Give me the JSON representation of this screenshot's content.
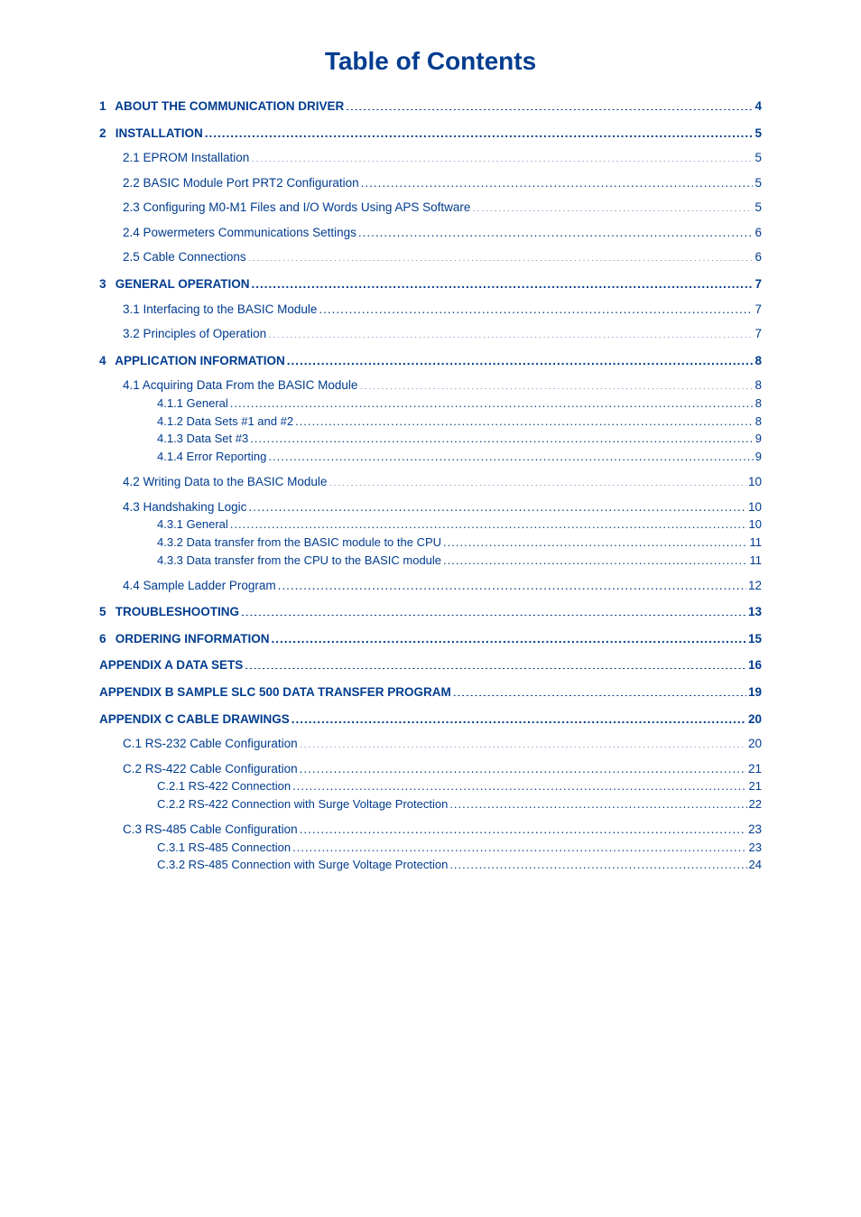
{
  "doc": {
    "title": "Table of Contents",
    "colors": {
      "text": "#003c8f",
      "background": "#ffffff"
    },
    "font_sizes": {
      "title_pt": 21,
      "body_pt": 10.5
    }
  },
  "toc": [
    {
      "level": 1,
      "num": "1",
      "text": "ABOUT THE COMMUNICATION DRIVER",
      "page": "4"
    },
    {
      "level": 1,
      "num": "2",
      "text": "INSTALLATION",
      "page": "5"
    },
    {
      "level": 2,
      "num": "2.1",
      "text": "EPROM Installation",
      "page": "5"
    },
    {
      "level": 2,
      "num": "2.2",
      "text": "BASIC Module Port PRT2 Configuration",
      "page": "5"
    },
    {
      "level": 2,
      "num": "2.3",
      "text": "Configuring M0-M1 Files and I/O Words Using APS Software",
      "page": "5"
    },
    {
      "level": 2,
      "num": "2.4",
      "text": "Powermeters Communications Settings",
      "page": "6"
    },
    {
      "level": 2,
      "num": "2.5",
      "text": "Cable Connections",
      "page": "6"
    },
    {
      "level": 1,
      "num": "3",
      "text": "GENERAL OPERATION",
      "page": "7"
    },
    {
      "level": 2,
      "num": "3.1",
      "text": "Interfacing to the BASIC Module",
      "page": "7"
    },
    {
      "level": 2,
      "num": "3.2",
      "text": "Principles of Operation",
      "page": "7"
    },
    {
      "level": 1,
      "num": "4",
      "text": "APPLICATION INFORMATION",
      "page": "8"
    },
    {
      "level": 2,
      "num": "4.1",
      "text": "Acquiring Data From the BASIC Module",
      "page": "8"
    },
    {
      "level": 3,
      "num": "4.1.1",
      "text": "General",
      "page": "8"
    },
    {
      "level": 3,
      "num": "4.1.2",
      "text": "Data Sets #1 and #2",
      "page": "8"
    },
    {
      "level": 3,
      "num": "4.1.3",
      "text": "Data Set #3",
      "page": "9"
    },
    {
      "level": 3,
      "num": "4.1.4",
      "text": "Error Reporting",
      "page": "9"
    },
    {
      "level": 2,
      "num": "4.2",
      "text": "Writing Data to the BASIC Module",
      "page": "10",
      "gap_before": true
    },
    {
      "level": 2,
      "num": "4.3",
      "text": "Handshaking Logic",
      "page": "10"
    },
    {
      "level": 3,
      "num": "4.3.1",
      "text": "General",
      "page": "10"
    },
    {
      "level": 3,
      "num": "4.3.2",
      "text": "Data transfer from the BASIC module to the CPU",
      "page": "11"
    },
    {
      "level": 3,
      "num": "4.3.3",
      "text": "Data transfer from the CPU to the BASIC module",
      "page": "11"
    },
    {
      "level": 2,
      "num": "4.4",
      "text": "Sample Ladder Program",
      "page": "12",
      "gap_before": true
    },
    {
      "level": 1,
      "num": "5",
      "text": "TROUBLESHOOTING",
      "page": "13"
    },
    {
      "level": 1,
      "num": "6",
      "text": "ORDERING INFORMATION",
      "page": "15"
    },
    {
      "level": 1,
      "num": "",
      "text": "APPENDIX A   DATA SETS",
      "page": "16"
    },
    {
      "level": 1,
      "num": "",
      "text": "APPENDIX B   SAMPLE SLC 500 DATA TRANSFER PROGRAM",
      "page": "19"
    },
    {
      "level": 1,
      "num": "",
      "text": "APPENDIX C   CABLE DRAWINGS",
      "page": "20"
    },
    {
      "level": 2,
      "num": "C.1",
      "text": "RS-232 Cable Configuration",
      "page": "20"
    },
    {
      "level": 2,
      "num": "C.2",
      "text": "RS-422 Cable Configuration",
      "page": "21"
    },
    {
      "level": 3,
      "num": "C.2.1",
      "text": "RS-422 Connection",
      "page": "21"
    },
    {
      "level": 3,
      "num": "C.2.2",
      "text": "RS-422 Connection with Surge Voltage Protection",
      "page": "22"
    },
    {
      "level": 2,
      "num": "C.3",
      "text": "RS-485 Cable Configuration",
      "page": "23",
      "gap_before": true
    },
    {
      "level": 3,
      "num": "C.3.1",
      "text": "RS-485 Connection",
      "page": "23"
    },
    {
      "level": 3,
      "num": "C.3.2",
      "text": "RS-485 Connection with Surge Voltage Protection",
      "page": "24"
    }
  ]
}
